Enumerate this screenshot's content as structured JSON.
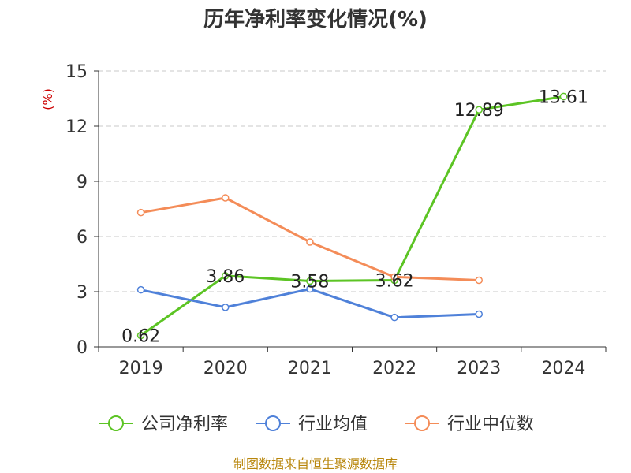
{
  "chart_data": {
    "type": "line",
    "title": "历年净利率变化情况(%)",
    "ylabel": "(%)",
    "xlabel": "",
    "categories": [
      "2019",
      "2020",
      "2021",
      "2022",
      "2023",
      "2024"
    ],
    "ylim": [
      0,
      15
    ],
    "yticks": [
      0,
      3,
      6,
      9,
      12,
      15
    ],
    "grid": true,
    "legend_position": "bottom",
    "series": [
      {
        "name": "公司净利率",
        "color": "#5cc424",
        "labels": true,
        "values": [
          0.62,
          3.86,
          3.58,
          3.62,
          12.89,
          13.61
        ]
      },
      {
        "name": "行业均值",
        "color": "#4f81d9",
        "labels": false,
        "values": [
          3.1,
          2.15,
          3.15,
          1.6,
          1.78,
          null
        ]
      },
      {
        "name": "行业中位数",
        "color": "#f48c58",
        "labels": false,
        "values": [
          7.3,
          8.1,
          5.7,
          3.8,
          3.62,
          null
        ]
      }
    ],
    "data_labels": [
      "0.62",
      "3.86",
      "3.58",
      "3.62",
      "12.89",
      "13.61"
    ],
    "source": "制图数据来自恒生聚源数据库"
  }
}
